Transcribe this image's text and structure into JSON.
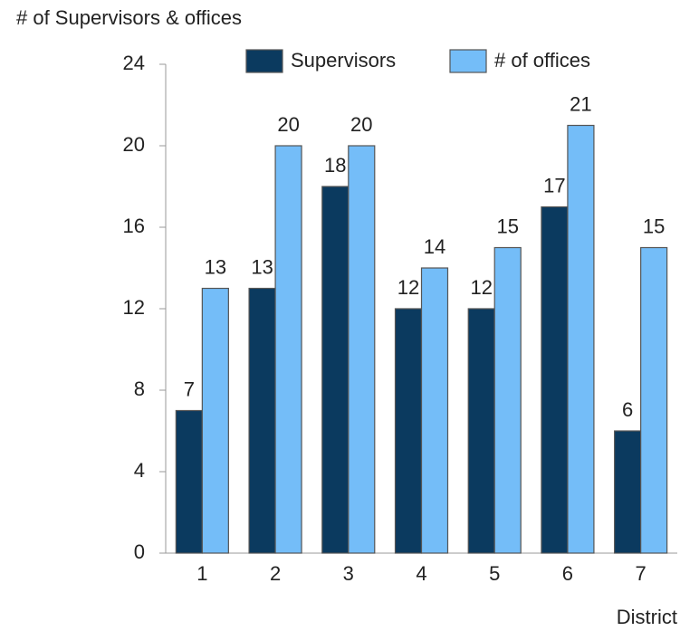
{
  "chart_data": {
    "type": "bar",
    "title": "# of Supervisors & offices",
    "x_label": "District",
    "categories": [
      "1",
      "2",
      "3",
      "4",
      "5",
      "6",
      "7"
    ],
    "series": [
      {
        "name": "Supervisors",
        "color": "#0b3a5f",
        "values": [
          7,
          13,
          18,
          12,
          12,
          17,
          6
        ]
      },
      {
        "name": "# of offices",
        "color": "#74bdf8",
        "values": [
          13,
          20,
          20,
          14,
          15,
          21,
          15
        ]
      }
    ],
    "ylim": [
      0,
      24
    ],
    "yticks": [
      0,
      4,
      8,
      12,
      16,
      20,
      24
    ],
    "grid": false,
    "legend": "top"
  }
}
